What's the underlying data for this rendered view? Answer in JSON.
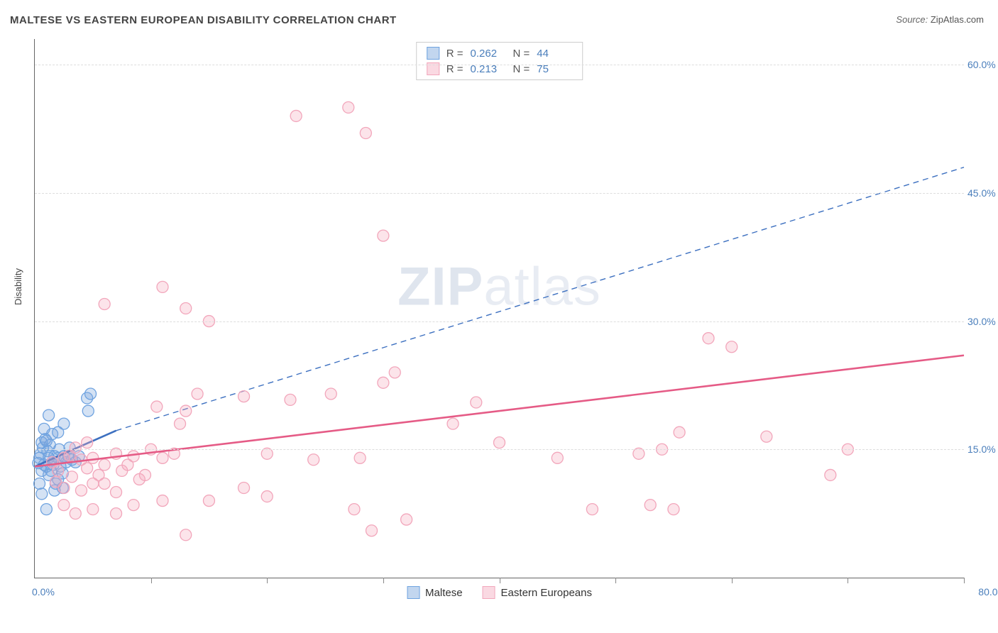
{
  "title": "MALTESE VS EASTERN EUROPEAN DISABILITY CORRELATION CHART",
  "source_label": "Source:",
  "source_name": "ZipAtlas.com",
  "ylabel": "Disability",
  "watermark_bold": "ZIP",
  "watermark_light": "atlas",
  "chart": {
    "type": "scatter",
    "xlim": [
      0,
      80
    ],
    "ylim": [
      0,
      63
    ],
    "x_ticks_minor": [
      10,
      20,
      30,
      40,
      50,
      60,
      70,
      80
    ],
    "x_tick_labels": [
      {
        "v": 0,
        "t": "0.0%"
      },
      {
        "v": 80,
        "t": "80.0%"
      }
    ],
    "y_gridlines": [
      15,
      30,
      45,
      60
    ],
    "y_tick_labels": [
      {
        "v": 15,
        "t": "15.0%"
      },
      {
        "v": 30,
        "t": "30.0%"
      },
      {
        "v": 45,
        "t": "45.0%"
      },
      {
        "v": 60,
        "t": "60.0%"
      }
    ],
    "background_color": "#ffffff",
    "grid_color": "#dddddd",
    "axis_color": "#666666",
    "series": [
      {
        "name": "Maltese",
        "stroke": "#6fa3e0",
        "fill": "rgba(120,165,220,0.32)",
        "marker_r": 8,
        "trend_solid": {
          "x1": 0,
          "y1": 13.0,
          "x2": 7.0,
          "y2": 17.2
        },
        "trend_dash": {
          "x1": 7.0,
          "y1": 17.2,
          "x2": 80,
          "y2": 48.0
        },
        "trend_color": "#3d70c0",
        "points": [
          [
            0.4,
            14.0
          ],
          [
            0.5,
            14.5
          ],
          [
            0.8,
            13.2
          ],
          [
            0.7,
            15.2
          ],
          [
            0.9,
            16.2
          ],
          [
            1.0,
            13.0
          ],
          [
            1.1,
            14.8
          ],
          [
            1.2,
            12.0
          ],
          [
            1.3,
            15.5
          ],
          [
            1.5,
            16.8
          ],
          [
            1.6,
            13.2
          ],
          [
            1.7,
            14.2
          ],
          [
            1.8,
            11.0
          ],
          [
            0.6,
            12.5
          ],
          [
            2.0,
            14.0
          ],
          [
            2.1,
            15.0
          ],
          [
            2.2,
            13.0
          ],
          [
            2.4,
            12.2
          ],
          [
            2.5,
            14.2
          ],
          [
            0.3,
            13.4
          ],
          [
            0.6,
            15.8
          ],
          [
            0.8,
            17.4
          ],
          [
            1.0,
            16.0
          ],
          [
            1.2,
            14.0
          ],
          [
            1.5,
            13.5
          ],
          [
            1.4,
            12.5
          ],
          [
            0.4,
            11.0
          ],
          [
            0.6,
            9.8
          ],
          [
            1.7,
            10.2
          ],
          [
            2.0,
            11.5
          ],
          [
            2.4,
            10.5
          ],
          [
            2.7,
            13.5
          ],
          [
            2.9,
            14.2
          ],
          [
            3.2,
            13.8
          ],
          [
            3.0,
            15.2
          ],
          [
            2.0,
            17.0
          ],
          [
            2.5,
            18.0
          ],
          [
            1.2,
            19.0
          ],
          [
            3.5,
            13.5
          ],
          [
            3.8,
            14.2
          ],
          [
            4.5,
            21.0
          ],
          [
            4.8,
            21.5
          ],
          [
            4.6,
            19.5
          ],
          [
            1.0,
            8.0
          ]
        ]
      },
      {
        "name": "Eastern Europeans",
        "stroke": "#f2a6bb",
        "fill": "rgba(245,170,190,0.32)",
        "marker_r": 8,
        "trend_solid": {
          "x1": 0,
          "y1": 13.0,
          "x2": 80,
          "y2": 26.0
        },
        "trend_color": "#e55b86",
        "points": [
          [
            1.5,
            13.5
          ],
          [
            2.0,
            12.5
          ],
          [
            2.5,
            14.0
          ],
          [
            3.0,
            14.3
          ],
          [
            3.5,
            15.2
          ],
          [
            4.0,
            13.8
          ],
          [
            4.5,
            12.8
          ],
          [
            5.0,
            14.0
          ],
          [
            5.5,
            12.0
          ],
          [
            6.0,
            13.2
          ],
          [
            7.0,
            14.5
          ],
          [
            7.5,
            12.5
          ],
          [
            8.0,
            13.2
          ],
          [
            9.0,
            11.5
          ],
          [
            1.8,
            11.2
          ],
          [
            2.5,
            10.5
          ],
          [
            3.2,
            11.8
          ],
          [
            4.0,
            10.2
          ],
          [
            5.0,
            11.0
          ],
          [
            6.0,
            11.0
          ],
          [
            7.0,
            10.0
          ],
          [
            8.5,
            14.2
          ],
          [
            9.5,
            12.0
          ],
          [
            10.0,
            15.0
          ],
          [
            11.0,
            14.0
          ],
          [
            12.0,
            14.5
          ],
          [
            4.5,
            15.8
          ],
          [
            12.5,
            18.0
          ],
          [
            13.0,
            19.5
          ],
          [
            14.0,
            21.5
          ],
          [
            10.5,
            20.0
          ],
          [
            13.0,
            31.5
          ],
          [
            15.0,
            30.0
          ],
          [
            18.0,
            21.2
          ],
          [
            22.0,
            20.8
          ],
          [
            25.5,
            21.5
          ],
          [
            30.0,
            22.8
          ],
          [
            31.0,
            24.0
          ],
          [
            28.0,
            14.0
          ],
          [
            20.0,
            14.5
          ],
          [
            24.0,
            13.8
          ],
          [
            27.5,
            8.0
          ],
          [
            29.0,
            5.5
          ],
          [
            32.0,
            6.8
          ],
          [
            30.0,
            40.0
          ],
          [
            18.0,
            10.5
          ],
          [
            20.0,
            9.5
          ],
          [
            15.0,
            9.0
          ],
          [
            13.0,
            5.0
          ],
          [
            11.0,
            9.0
          ],
          [
            6.0,
            32.0
          ],
          [
            11.0,
            34.0
          ],
          [
            27.0,
            55.0
          ],
          [
            22.5,
            54.0
          ],
          [
            28.5,
            52.0
          ],
          [
            36.0,
            18.0
          ],
          [
            38.0,
            20.5
          ],
          [
            40.0,
            15.8
          ],
          [
            45.0,
            14.0
          ],
          [
            48.0,
            8.0
          ],
          [
            53.0,
            8.5
          ],
          [
            55.0,
            8.0
          ],
          [
            52.0,
            14.5
          ],
          [
            54.0,
            15.0
          ],
          [
            55.5,
            17.0
          ],
          [
            58.0,
            28.0
          ],
          [
            60.0,
            27.0
          ],
          [
            63.0,
            16.5
          ],
          [
            68.5,
            12.0
          ],
          [
            70.0,
            15.0
          ],
          [
            2.5,
            8.5
          ],
          [
            3.5,
            7.5
          ],
          [
            5.0,
            8.0
          ],
          [
            7.0,
            7.5
          ],
          [
            8.5,
            8.5
          ]
        ]
      }
    ]
  },
  "legend_top": {
    "rows": [
      {
        "swatch_fill": "rgba(120,165,220,0.45)",
        "swatch_stroke": "#6fa3e0",
        "R_label": "R =",
        "R": "0.262",
        "N_label": "N =",
        "N": "44"
      },
      {
        "swatch_fill": "rgba(245,170,190,0.45)",
        "swatch_stroke": "#f2a6bb",
        "R_label": "R =",
        "R": "0.213",
        "N_label": "N =",
        "N": "75"
      }
    ]
  },
  "legend_bottom": {
    "items": [
      {
        "label": "Maltese",
        "fill": "rgba(120,165,220,0.45)",
        "stroke": "#6fa3e0"
      },
      {
        "label": "Eastern Europeans",
        "fill": "rgba(245,170,190,0.45)",
        "stroke": "#f2a6bb"
      }
    ]
  }
}
